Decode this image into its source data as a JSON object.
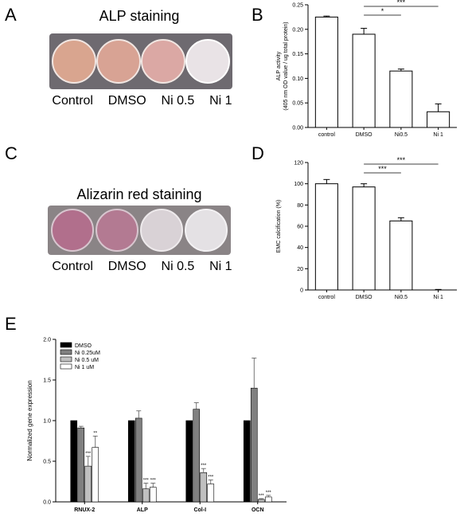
{
  "panels": {
    "a": {
      "letter": "A",
      "title": "ALP staining",
      "wells": [
        "Control",
        "DMSO",
        "Ni 0.5",
        "Ni 1"
      ]
    },
    "b": {
      "letter": "B"
    },
    "c": {
      "letter": "C",
      "title": "Alizarin red staining",
      "wells": [
        "Control",
        "DMSO",
        "Ni 0.5",
        "Ni 1"
      ]
    },
    "d": {
      "letter": "D"
    },
    "e": {
      "letter": "E"
    }
  },
  "colors": {
    "alp_well": [
      "#d9a58f",
      "#d8a394",
      "#dba8a4",
      "#e9e3e6"
    ],
    "alizarin_well": [
      "#b16f8c",
      "#b37a92",
      "#d9d2d6",
      "#e4e1e4"
    ],
    "dmso": "#000000",
    "ni025": "#808080",
    "ni05": "#c0c0c0",
    "ni1": "#ffffff"
  },
  "chart_data": [
    {
      "type": "bar",
      "panel": "B",
      "categories": [
        "control",
        "DMSO",
        "Ni0.5",
        "Ni 1"
      ],
      "values": [
        0.225,
        0.19,
        0.115,
        0.032
      ],
      "errors": [
        0.002,
        0.012,
        0.004,
        0.016
      ],
      "ylabel": "ALP activity",
      "ylabel2": "(405 nm OD value / ug total protein)",
      "ylim": [
        0,
        0.25
      ],
      "yticks": [
        "0.00",
        "0.05",
        "0.10",
        "0.15",
        "0.20",
        "0.25"
      ],
      "significance": [
        {
          "from": 1,
          "to": 3,
          "label": "***"
        },
        {
          "from": 1,
          "to": 2,
          "label": "*"
        }
      ]
    },
    {
      "type": "bar",
      "panel": "D",
      "categories": [
        "control",
        "DMSO",
        "Ni0.5",
        "Ni 1"
      ],
      "values": [
        100,
        97,
        65,
        0
      ],
      "errors": [
        4,
        3,
        3,
        0.5
      ],
      "ylabel": "EMC calcification (%)",
      "ylim": [
        0,
        120
      ],
      "yticks": [
        "0",
        "20",
        "40",
        "60",
        "80",
        "100",
        "120"
      ],
      "significance": [
        {
          "from": 1,
          "to": 3,
          "label": "***"
        },
        {
          "from": 1,
          "to": 2,
          "label": "***"
        }
      ]
    },
    {
      "type": "bar",
      "panel": "E",
      "categories": [
        "RNUX-2",
        "ALP",
        "Col-I",
        "OCN"
      ],
      "ylabel": "Normalized gene expression",
      "ylim": [
        0,
        2.0
      ],
      "yticks": [
        "0.0",
        "0.5",
        "1.0",
        "1.5",
        "2.0"
      ],
      "legend_position": "top-left",
      "series": [
        {
          "name": "DMSO",
          "values": [
            1.0,
            1.0,
            1.0,
            1.0
          ],
          "errors": [
            0,
            0,
            0,
            0
          ],
          "marks": [
            "",
            "",
            "",
            ""
          ]
        },
        {
          "name": "Ni 0.25uM",
          "values": [
            0.91,
            1.03,
            1.14,
            1.4
          ],
          "errors": [
            0.02,
            0.09,
            0.08,
            0.37
          ],
          "marks": [
            "",
            "",
            "",
            ""
          ]
        },
        {
          "name": "Ni 0.5 uM",
          "values": [
            0.44,
            0.16,
            0.36,
            0.03
          ],
          "errors": [
            0.12,
            0.07,
            0.05,
            0.01
          ],
          "marks": [
            "***",
            "***",
            "***",
            "***"
          ]
        },
        {
          "name": "Ni 1 uM",
          "values": [
            0.67,
            0.18,
            0.22,
            0.06
          ],
          "errors": [
            0.14,
            0.05,
            0.05,
            0.02
          ],
          "marks": [
            "**",
            "***",
            "***",
            "***"
          ]
        }
      ]
    }
  ]
}
